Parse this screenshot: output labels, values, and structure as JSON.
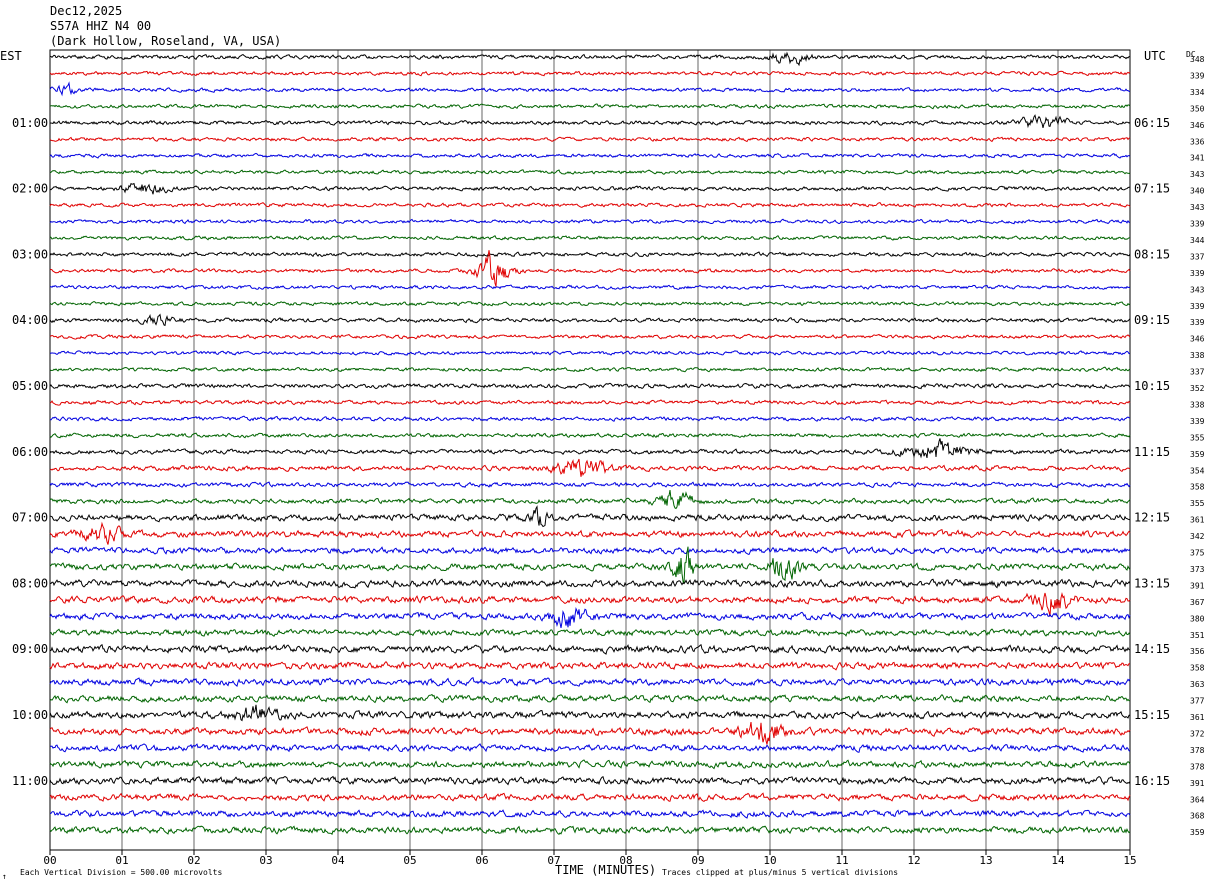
{
  "header": {
    "date": "Dec12,2025",
    "station": "S57A HHZ N4 00",
    "location": "(Dark Hollow, Roseland, VA, USA)"
  },
  "left_axis_label": "EST",
  "right_axis_label": "UTC",
  "dc_label": "DC",
  "footer": {
    "scale_note": "Each Vertical Division =  500.00 microvolts",
    "xlabel": "TIME (MINUTES)",
    "clip_note": "Traces clipped at plus/minus 5 vertical divisions",
    "corner_mark": "↑"
  },
  "colors": {
    "trace_cycle": [
      "#000000",
      "#e00000",
      "#0000e0",
      "#006400"
    ],
    "grid": "#000000"
  },
  "chart_data": {
    "type": "line",
    "title": "S57A HHZ N4 00",
    "xlabel": "TIME (MINUTES)",
    "xlim": [
      0,
      15
    ],
    "x_ticks": [
      "00",
      "01",
      "02",
      "03",
      "04",
      "05",
      "06",
      "07",
      "08",
      "09",
      "10",
      "11",
      "12",
      "13",
      "14",
      "15"
    ],
    "trace_count": 48,
    "trace_interval_minutes": 15,
    "left_time_labels": [
      {
        "row": 4,
        "label": "01:00"
      },
      {
        "row": 8,
        "label": "02:00"
      },
      {
        "row": 12,
        "label": "03:00"
      },
      {
        "row": 16,
        "label": "04:00"
      },
      {
        "row": 20,
        "label": "05:00"
      },
      {
        "row": 24,
        "label": "06:00"
      },
      {
        "row": 28,
        "label": "07:00"
      },
      {
        "row": 32,
        "label": "08:00"
      },
      {
        "row": 36,
        "label": "09:00"
      },
      {
        "row": 40,
        "label": "10:00"
      },
      {
        "row": 44,
        "label": "11:00"
      }
    ],
    "right_time_labels": [
      {
        "row": 4,
        "label": "06:15"
      },
      {
        "row": 8,
        "label": "07:15"
      },
      {
        "row": 12,
        "label": "08:15"
      },
      {
        "row": 16,
        "label": "09:15"
      },
      {
        "row": 20,
        "label": "10:15"
      },
      {
        "row": 24,
        "label": "11:15"
      },
      {
        "row": 28,
        "label": "12:15"
      },
      {
        "row": 32,
        "label": "13:15"
      },
      {
        "row": 36,
        "label": "14:15"
      },
      {
        "row": 40,
        "label": "15:15"
      },
      {
        "row": 44,
        "label": "16:15"
      }
    ],
    "dc_offsets": [
      348,
      339,
      334,
      350,
      346,
      336,
      341,
      343,
      340,
      343,
      339,
      344,
      337,
      339,
      343,
      339,
      339,
      346,
      338,
      337,
      352,
      338,
      339,
      355,
      359,
      354,
      358,
      355,
      361,
      342,
      375,
      373,
      391,
      367,
      380,
      351,
      356,
      358,
      363,
      377,
      361,
      372,
      378,
      378,
      391,
      364,
      368,
      359
    ],
    "noise_level": [
      0.5,
      0.45,
      0.45,
      0.45,
      0.5,
      0.45,
      0.45,
      0.45,
      0.5,
      0.45,
      0.45,
      0.45,
      0.5,
      0.45,
      0.45,
      0.45,
      0.5,
      0.45,
      0.45,
      0.45,
      0.55,
      0.5,
      0.5,
      0.5,
      0.55,
      0.6,
      0.55,
      0.6,
      0.8,
      0.8,
      0.75,
      0.8,
      0.85,
      0.85,
      0.8,
      0.75,
      0.9,
      0.85,
      0.8,
      0.8,
      0.85,
      0.85,
      0.8,
      0.8,
      0.85,
      0.8,
      0.8,
      0.8
    ],
    "events": [
      {
        "row": 0,
        "minute": 10.25,
        "amp": 1.8,
        "width": 0.35
      },
      {
        "row": 2,
        "minute": 0.2,
        "amp": 1.4,
        "width": 0.2
      },
      {
        "row": 4,
        "minute": 13.8,
        "amp": 2.0,
        "width": 0.4
      },
      {
        "row": 8,
        "minute": 1.3,
        "amp": 1.4,
        "width": 0.4
      },
      {
        "row": 13,
        "minute": 6.15,
        "amp": 4.5,
        "width": 0.3
      },
      {
        "row": 16,
        "minute": 1.5,
        "amp": 1.3,
        "width": 0.3
      },
      {
        "row": 24,
        "minute": 12.3,
        "amp": 2.3,
        "width": 0.6
      },
      {
        "row": 25,
        "minute": 7.4,
        "amp": 2.3,
        "width": 0.5
      },
      {
        "row": 27,
        "minute": 8.7,
        "amp": 2.6,
        "width": 0.35
      },
      {
        "row": 28,
        "minute": 6.8,
        "amp": 2.0,
        "width": 0.2
      },
      {
        "row": 29,
        "minute": 0.7,
        "amp": 2.0,
        "width": 0.4
      },
      {
        "row": 31,
        "minute": 8.8,
        "amp": 4.5,
        "width": 0.2
      },
      {
        "row": 31,
        "minute": 10.2,
        "amp": 3.0,
        "width": 0.3
      },
      {
        "row": 33,
        "minute": 13.9,
        "amp": 3.2,
        "width": 0.35
      },
      {
        "row": 34,
        "minute": 7.2,
        "amp": 2.5,
        "width": 0.35
      },
      {
        "row": 40,
        "minute": 2.9,
        "amp": 2.0,
        "width": 0.4
      },
      {
        "row": 41,
        "minute": 9.9,
        "amp": 3.0,
        "width": 0.4
      }
    ]
  }
}
